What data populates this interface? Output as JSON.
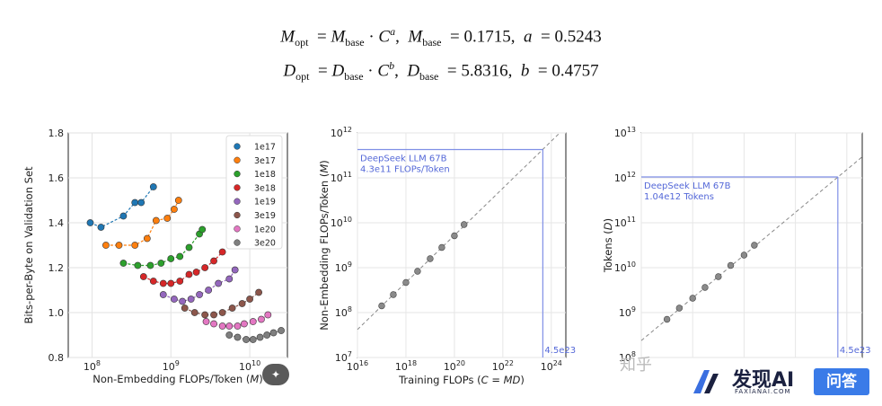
{
  "equations": {
    "m_opt": {
      "lhs": "M",
      "lhs_sub": "opt",
      "base": "M",
      "base_sub": "base",
      "c": "C",
      "exp": "a",
      "k_sym": "M",
      "k_sub": "base",
      "k_val": "0.1715",
      "e_sym": "a",
      "e_val": "0.5243"
    },
    "d_opt": {
      "lhs": "D",
      "lhs_sub": "opt",
      "base": "D",
      "base_sub": "base",
      "c": "C",
      "exp": "b",
      "k_sym": "D",
      "k_sub": "base",
      "k_val": "5.8316",
      "e_sym": "b",
      "e_val": "0.4757"
    }
  },
  "chart_data": [
    {
      "type": "scatter",
      "id": "left",
      "xlabel": "Non-Embedding FLOPs/Token (M)",
      "ylabel": "Bits-per-Byte on Validation Set",
      "xscale": "log",
      "xlim": [
        50000000,
        30000000000
      ],
      "ylim": [
        0.8,
        1.8
      ],
      "xticks": [
        {
          "v": 100000000,
          "e": "8"
        },
        {
          "v": 1000000000,
          "e": "9"
        },
        {
          "v": 10000000000,
          "e": "10"
        }
      ],
      "yticks": [
        "0.8",
        "1.0",
        "1.2",
        "1.4",
        "1.6",
        "1.8"
      ],
      "grid": true,
      "legend_position": "top-right",
      "series": [
        {
          "name": "1e17",
          "color": "#1f77b4",
          "points": [
            [
              95000000,
              1.4
            ],
            [
              130000000,
              1.38
            ],
            [
              250000000,
              1.43
            ],
            [
              350000000,
              1.49
            ],
            [
              420000000,
              1.49
            ],
            [
              600000000,
              1.56
            ]
          ]
        },
        {
          "name": "3e17",
          "color": "#ff7f0e",
          "points": [
            [
              150000000,
              1.3
            ],
            [
              220000000,
              1.3
            ],
            [
              350000000,
              1.3
            ],
            [
              500000000,
              1.33
            ],
            [
              650000000,
              1.41
            ],
            [
              900000000,
              1.42
            ],
            [
              1100000000,
              1.46
            ],
            [
              1250000000,
              1.5
            ]
          ]
        },
        {
          "name": "1e18",
          "color": "#2ca02c",
          "points": [
            [
              250000000,
              1.22
            ],
            [
              380000000,
              1.21
            ],
            [
              550000000,
              1.21
            ],
            [
              750000000,
              1.22
            ],
            [
              1000000000,
              1.24
            ],
            [
              1300000000,
              1.25
            ],
            [
              1700000000,
              1.29
            ],
            [
              2300000000,
              1.35
            ],
            [
              2500000000,
              1.37
            ]
          ]
        },
        {
          "name": "3e18",
          "color": "#d62728",
          "points": [
            [
              450000000,
              1.16
            ],
            [
              600000000,
              1.14
            ],
            [
              800000000,
              1.13
            ],
            [
              1000000000,
              1.13
            ],
            [
              1300000000,
              1.14
            ],
            [
              1700000000,
              1.17
            ],
            [
              2100000000,
              1.18
            ],
            [
              2700000000,
              1.2
            ],
            [
              3500000000,
              1.23
            ],
            [
              4500000000,
              1.27
            ]
          ]
        },
        {
          "name": "1e19",
          "color": "#9467bd",
          "points": [
            [
              800000000,
              1.08
            ],
            [
              1100000000,
              1.06
            ],
            [
              1400000000,
              1.05
            ],
            [
              1800000000,
              1.06
            ],
            [
              2300000000,
              1.08
            ],
            [
              3000000000,
              1.1
            ],
            [
              4000000000,
              1.13
            ],
            [
              5500000000,
              1.15
            ],
            [
              6500000000,
              1.19
            ]
          ]
        },
        {
          "name": "3e19",
          "color": "#8c564b",
          "points": [
            [
              1500000000,
              1.02
            ],
            [
              2000000000,
              1.0
            ],
            [
              2700000000,
              0.99
            ],
            [
              3500000000,
              0.99
            ],
            [
              4500000000,
              1.0
            ],
            [
              6000000000,
              1.02
            ],
            [
              8000000000,
              1.04
            ],
            [
              10000000000,
              1.06
            ],
            [
              13000000000,
              1.09
            ]
          ]
        },
        {
          "name": "1e20",
          "color": "#e377c2",
          "points": [
            [
              2800000000,
              0.96
            ],
            [
              3500000000,
              0.95
            ],
            [
              4500000000,
              0.94
            ],
            [
              5500000000,
              0.94
            ],
            [
              7000000000,
              0.94
            ],
            [
              8500000000,
              0.95
            ],
            [
              11000000000,
              0.96
            ],
            [
              14000000000,
              0.97
            ],
            [
              17000000000,
              0.99
            ]
          ]
        },
        {
          "name": "3e20",
          "color": "#7f7f7f",
          "points": [
            [
              5500000000,
              0.9
            ],
            [
              7000000000,
              0.89
            ],
            [
              9000000000,
              0.88
            ],
            [
              11000000000,
              0.88
            ],
            [
              13500000000,
              0.89
            ],
            [
              16500000000,
              0.9
            ],
            [
              20000000000,
              0.91
            ],
            [
              25000000000,
              0.92
            ]
          ]
        }
      ]
    },
    {
      "type": "scatter",
      "id": "middle",
      "xlabel": "Training FLOPs (C = MD)",
      "ylabel": "Non-Embedding FLOPs/Token (M)",
      "xscale": "log",
      "yscale": "log",
      "xlim": [
        16,
        24.6
      ],
      "ylim": [
        7,
        12
      ],
      "xticks": [
        {
          "v": 16,
          "e": "16"
        },
        {
          "v": 18,
          "e": "18"
        },
        {
          "v": 20,
          "e": "20"
        },
        {
          "v": 22,
          "e": "22"
        },
        {
          "v": 24,
          "e": "24"
        }
      ],
      "yticks": [
        {
          "v": 7,
          "e": "7"
        },
        {
          "v": 8,
          "e": "8"
        },
        {
          "v": 9,
          "e": "9"
        },
        {
          "v": 10,
          "e": "10"
        },
        {
          "v": 11,
          "e": "11"
        },
        {
          "v": 12,
          "e": "12"
        }
      ],
      "grid": true,
      "fit_line": {
        "slope": 0.5243,
        "log_coef": -0.7657
      },
      "points_log": [
        [
          17,
          8.15
        ],
        [
          17.48,
          8.4
        ],
        [
          18,
          8.67
        ],
        [
          18.48,
          8.92
        ],
        [
          19,
          9.2
        ],
        [
          19.48,
          9.45
        ],
        [
          20,
          9.71
        ],
        [
          20.4,
          9.96
        ]
      ],
      "annotation": {
        "name": "DeepSeek LLM 67B",
        "detail": "4.3e11 FLOPs/Token",
        "x_log": 23.65,
        "y_log": 11.63,
        "x_label": "4.5e23"
      }
    },
    {
      "type": "scatter",
      "id": "right",
      "ylabel": "Tokens (D)",
      "xscale": "log",
      "yscale": "log",
      "xlim": [
        16,
        24.6
      ],
      "ylim": [
        8,
        13
      ],
      "yticks": [
        {
          "v": 8,
          "e": "8"
        },
        {
          "v": 9,
          "e": "9"
        },
        {
          "v": 10,
          "e": "10"
        },
        {
          "v": 11,
          "e": "11"
        },
        {
          "v": 12,
          "e": "12"
        },
        {
          "v": 13,
          "e": "13"
        }
      ],
      "grid": true,
      "fit_line": {
        "slope": 0.4757,
        "log_coef": 0.7658
      },
      "points_log": [
        [
          17,
          8.85
        ],
        [
          17.48,
          9.1
        ],
        [
          18,
          9.32
        ],
        [
          18.48,
          9.56
        ],
        [
          19,
          9.8
        ],
        [
          19.48,
          10.05
        ],
        [
          20,
          10.28
        ],
        [
          20.4,
          10.5
        ]
      ],
      "annotation": {
        "name": "DeepSeek LLM 67B",
        "detail": "1.04e12 Tokens",
        "x_log": 23.65,
        "y_log": 12.02,
        "x_label": "4.5e23"
      }
    }
  ],
  "watermark": {
    "zhihu": "知乎",
    "brand": "发现AI",
    "brand_sub": "FAXIANAI.COM",
    "button": "问答"
  },
  "wand_icon": "magic-wand-icon"
}
